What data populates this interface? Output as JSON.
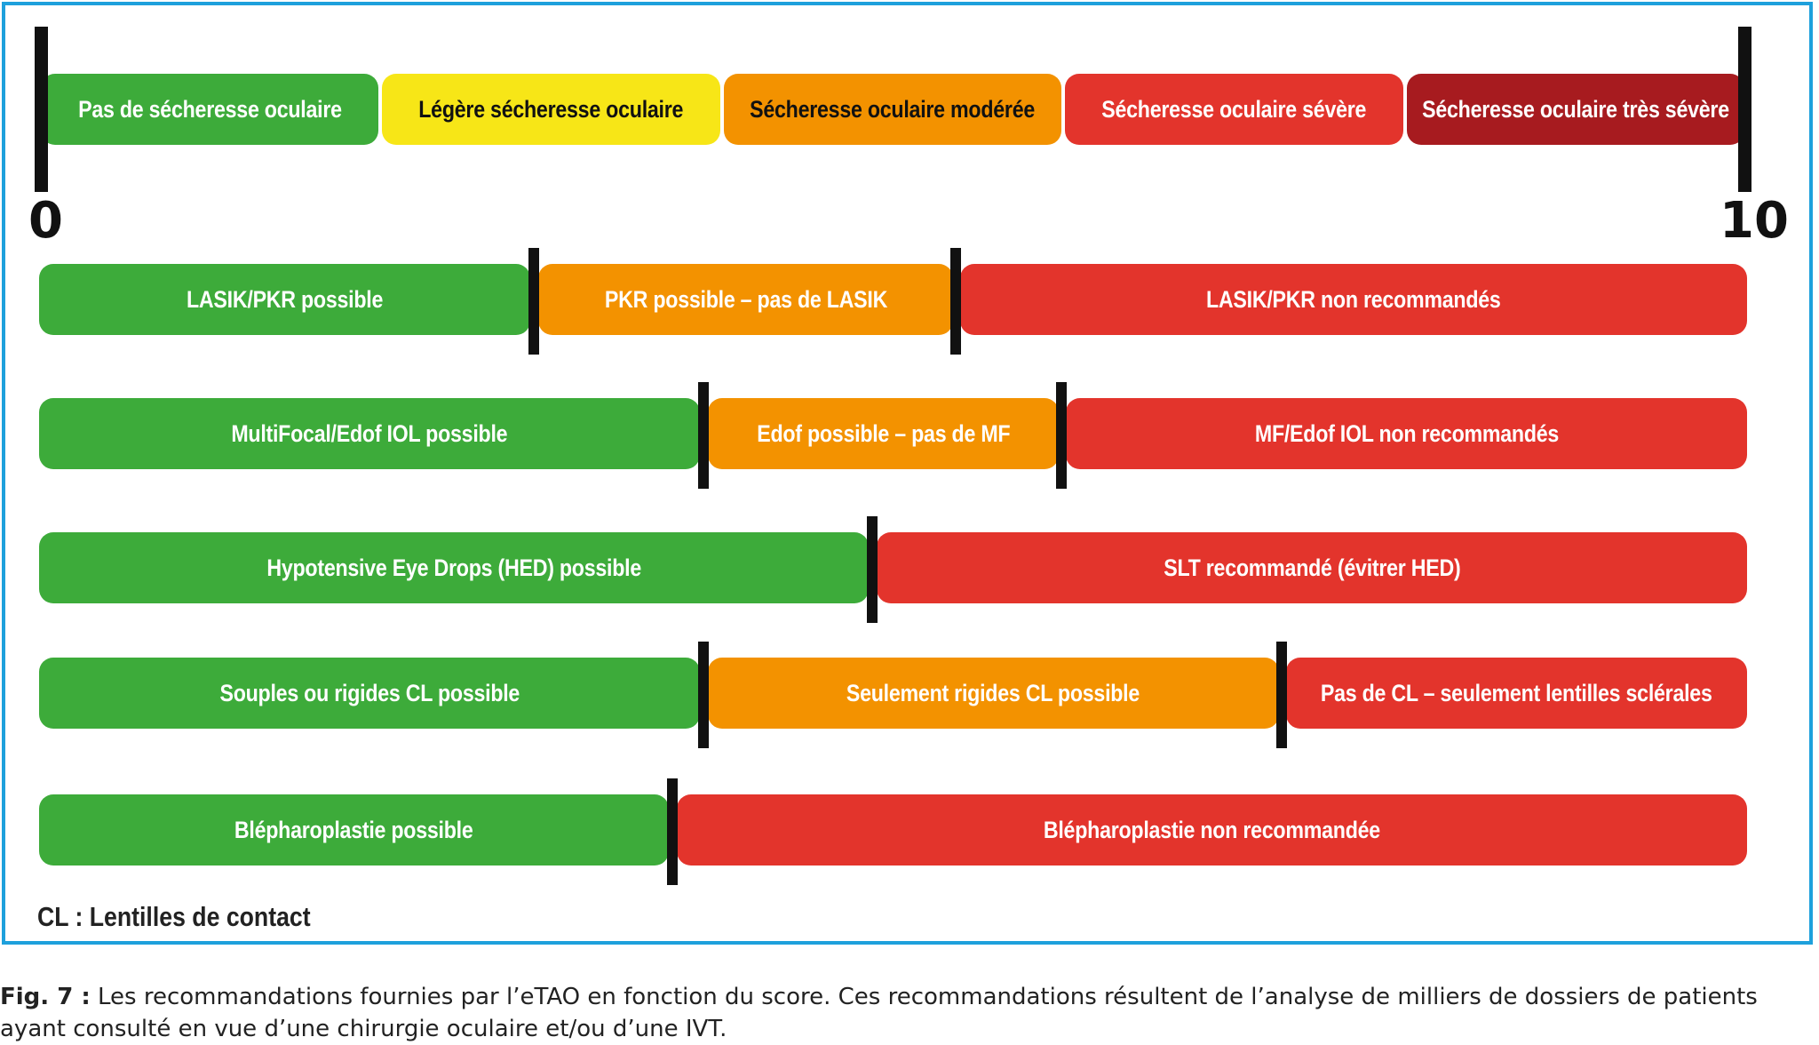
{
  "colors": {
    "green": "#3dab3a",
    "yellow": "#f7e617",
    "orange": "#f39200",
    "red": "#e3342c",
    "dark_red": "#a71b1f",
    "frame": "#1ea0dc"
  },
  "scale": {
    "min_label": "0",
    "max_label": "10",
    "segments": [
      {
        "label": "Pas de sécheresse oculaire",
        "color": "green",
        "text": "#ffffff"
      },
      {
        "label": "Légère sécheresse oculaire",
        "color": "yellow",
        "text": "#111111"
      },
      {
        "label": "Sécheresse oculaire modérée",
        "color": "orange",
        "text": "#111111"
      },
      {
        "label": "Sécheresse oculaire sévère",
        "color": "red",
        "text": "#ffffff"
      },
      {
        "label": "Sécheresse oculaire très sévère",
        "color": "dark_red",
        "text": "#ffffff"
      }
    ]
  },
  "rows": [
    {
      "name": "lasik",
      "segments": [
        {
          "label": "LASIK/PKR possible",
          "color": "green",
          "from": 0,
          "to": 2.9
        },
        {
          "label": "PKR possible – pas de LASIK",
          "color": "orange",
          "from": 2.9,
          "to": 5.37
        },
        {
          "label": "LASIK/PKR non recommandés",
          "color": "red",
          "from": 5.37,
          "to": 10
        }
      ]
    },
    {
      "name": "iol",
      "segments": [
        {
          "label": "MultiFocal/Edof IOL possible",
          "color": "green",
          "from": 0,
          "to": 3.89
        },
        {
          "label": "Edof possible – pas de MF",
          "color": "orange",
          "from": 3.89,
          "to": 5.99
        },
        {
          "label": "MF/Edof IOL non recommandés",
          "color": "red",
          "from": 5.99,
          "to": 10
        }
      ]
    },
    {
      "name": "hed",
      "segments": [
        {
          "label": "Hypotensive Eye Drops (HED) possible",
          "color": "green",
          "from": 0,
          "to": 4.88
        },
        {
          "label": "SLT recommandé (évitrer HED)",
          "color": "red",
          "from": 4.88,
          "to": 10
        }
      ]
    },
    {
      "name": "cl",
      "segments": [
        {
          "label": "Souples ou rigides CL possible",
          "color": "green",
          "from": 0,
          "to": 3.89
        },
        {
          "label": "Seulement rigides CL possible",
          "color": "orange",
          "from": 3.89,
          "to": 7.28
        },
        {
          "label": "Pas de CL – seulement lentilles sclérales",
          "color": "red",
          "from": 7.28,
          "to": 10
        }
      ]
    },
    {
      "name": "blepharo",
      "segments": [
        {
          "label": "Blépharoplastie possible",
          "color": "green",
          "from": 0,
          "to": 3.71
        },
        {
          "label": "Blépharoplastie non recommandée",
          "color": "red",
          "from": 3.71,
          "to": 10
        }
      ]
    }
  ],
  "footnote": "CL : Lentilles de contact",
  "caption": {
    "label": "Fig. 7 :",
    "text": "Les recommandations fournies par l’eTAO en fonction du score. Ces recommandations résultent de l’analyse de milliers de dossiers de patients ayant consulté en vue d’une chirurgie oculaire et/ou d’une IVT."
  }
}
